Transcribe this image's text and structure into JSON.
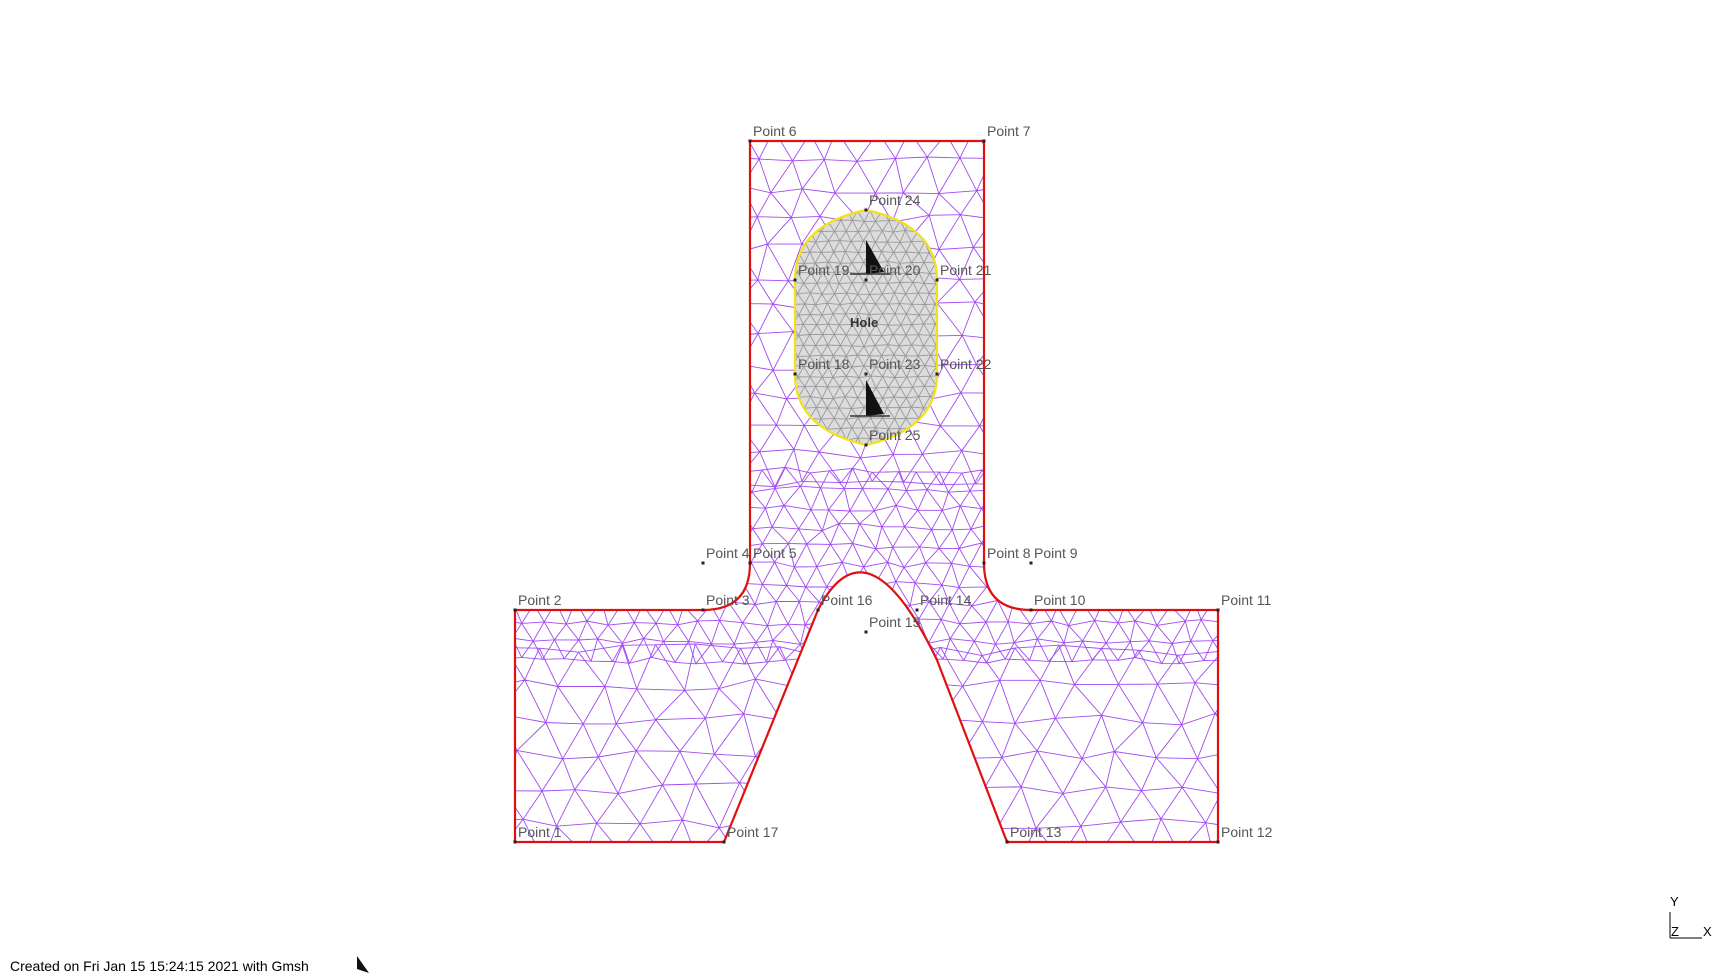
{
  "points": [
    {
      "name": "Point 1"
    },
    {
      "name": "Point 2"
    },
    {
      "name": "Point 3"
    },
    {
      "name": "Point 4"
    },
    {
      "name": "Point 5"
    },
    {
      "name": "Point 6"
    },
    {
      "name": "Point 7"
    },
    {
      "name": "Point 8"
    },
    {
      "name": "Point 9"
    },
    {
      "name": "Point 10"
    },
    {
      "name": "Point 11"
    },
    {
      "name": "Point 12"
    },
    {
      "name": "Point 13"
    },
    {
      "name": "Point 14"
    },
    {
      "name": "Point 15"
    },
    {
      "name": "Point 16"
    },
    {
      "name": "Point 17"
    },
    {
      "name": "Point 18"
    },
    {
      "name": "Point 19"
    },
    {
      "name": "Point 20"
    },
    {
      "name": "Point 21"
    },
    {
      "name": "Point 22"
    },
    {
      "name": "Point 23"
    },
    {
      "name": "Point 24"
    },
    {
      "name": "Point 25"
    }
  ],
  "physical_group_label": "Hole",
  "status_text": "Created on Fri Jan 15 15:24:15 2021 with Gmsh",
  "axes": {
    "y": "Y",
    "z": "Z",
    "x": "X"
  },
  "colors": {
    "boundary": "#e01010",
    "mesh": "#a24bf0",
    "hole_mesh": "#9a9a9a",
    "hole_fill": "#dcdcdc",
    "hole_boundary": "#f2e21a"
  }
}
